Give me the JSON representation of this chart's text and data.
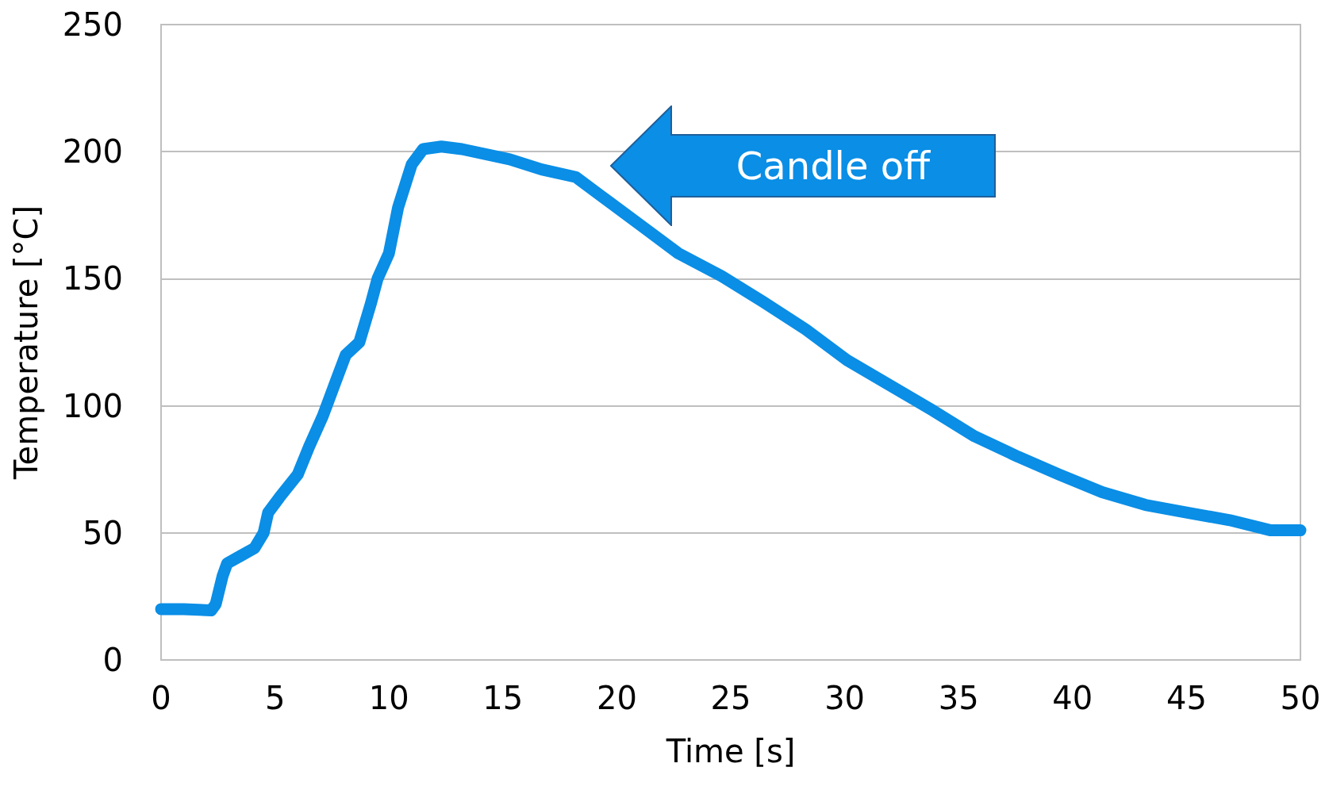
{
  "chart_data": {
    "type": "line",
    "xlabel": "Time [s]",
    "ylabel": "Temperature [°C]",
    "color": "#0a8ee6",
    "x": [
      0,
      1,
      2.2,
      2.4,
      2.7,
      2.9,
      3.5,
      4.1,
      4.5,
      4.7,
      5.2,
      6.0,
      6.5,
      7.1,
      7.6,
      8.1,
      8.7,
      9.2,
      9.5,
      10.0,
      10.4,
      11.0,
      11.5,
      12.3,
      13.2,
      15.3,
      16.7,
      18.2,
      19.7,
      21.2,
      22.7,
      24.6,
      26.4,
      28.3,
      30.1,
      32.0,
      33.9,
      35.7,
      37.6,
      39.4,
      41.3,
      43.2,
      45.0,
      46.9,
      48.7,
      50
    ],
    "values": [
      20,
      20,
      19.5,
      22,
      33,
      38,
      41,
      44,
      50,
      58,
      64,
      73,
      84,
      96,
      108,
      120,
      125,
      140,
      150,
      160,
      178,
      195,
      201,
      202,
      201,
      197,
      193,
      190,
      180,
      170,
      160,
      151,
      141,
      130,
      118,
      108,
      98,
      88,
      80,
      73,
      66,
      61,
      58,
      55,
      51,
      51
    ],
    "xlim": [
      0,
      50
    ],
    "xticks": [
      0,
      5,
      10,
      15,
      20,
      25,
      30,
      35,
      40,
      45,
      50
    ],
    "ylim": [
      0,
      250
    ],
    "yticks": [
      0,
      50,
      100,
      150,
      200,
      250
    ],
    "grid": "y",
    "line_style": "solid",
    "annotations": [
      "Candle off"
    ]
  }
}
